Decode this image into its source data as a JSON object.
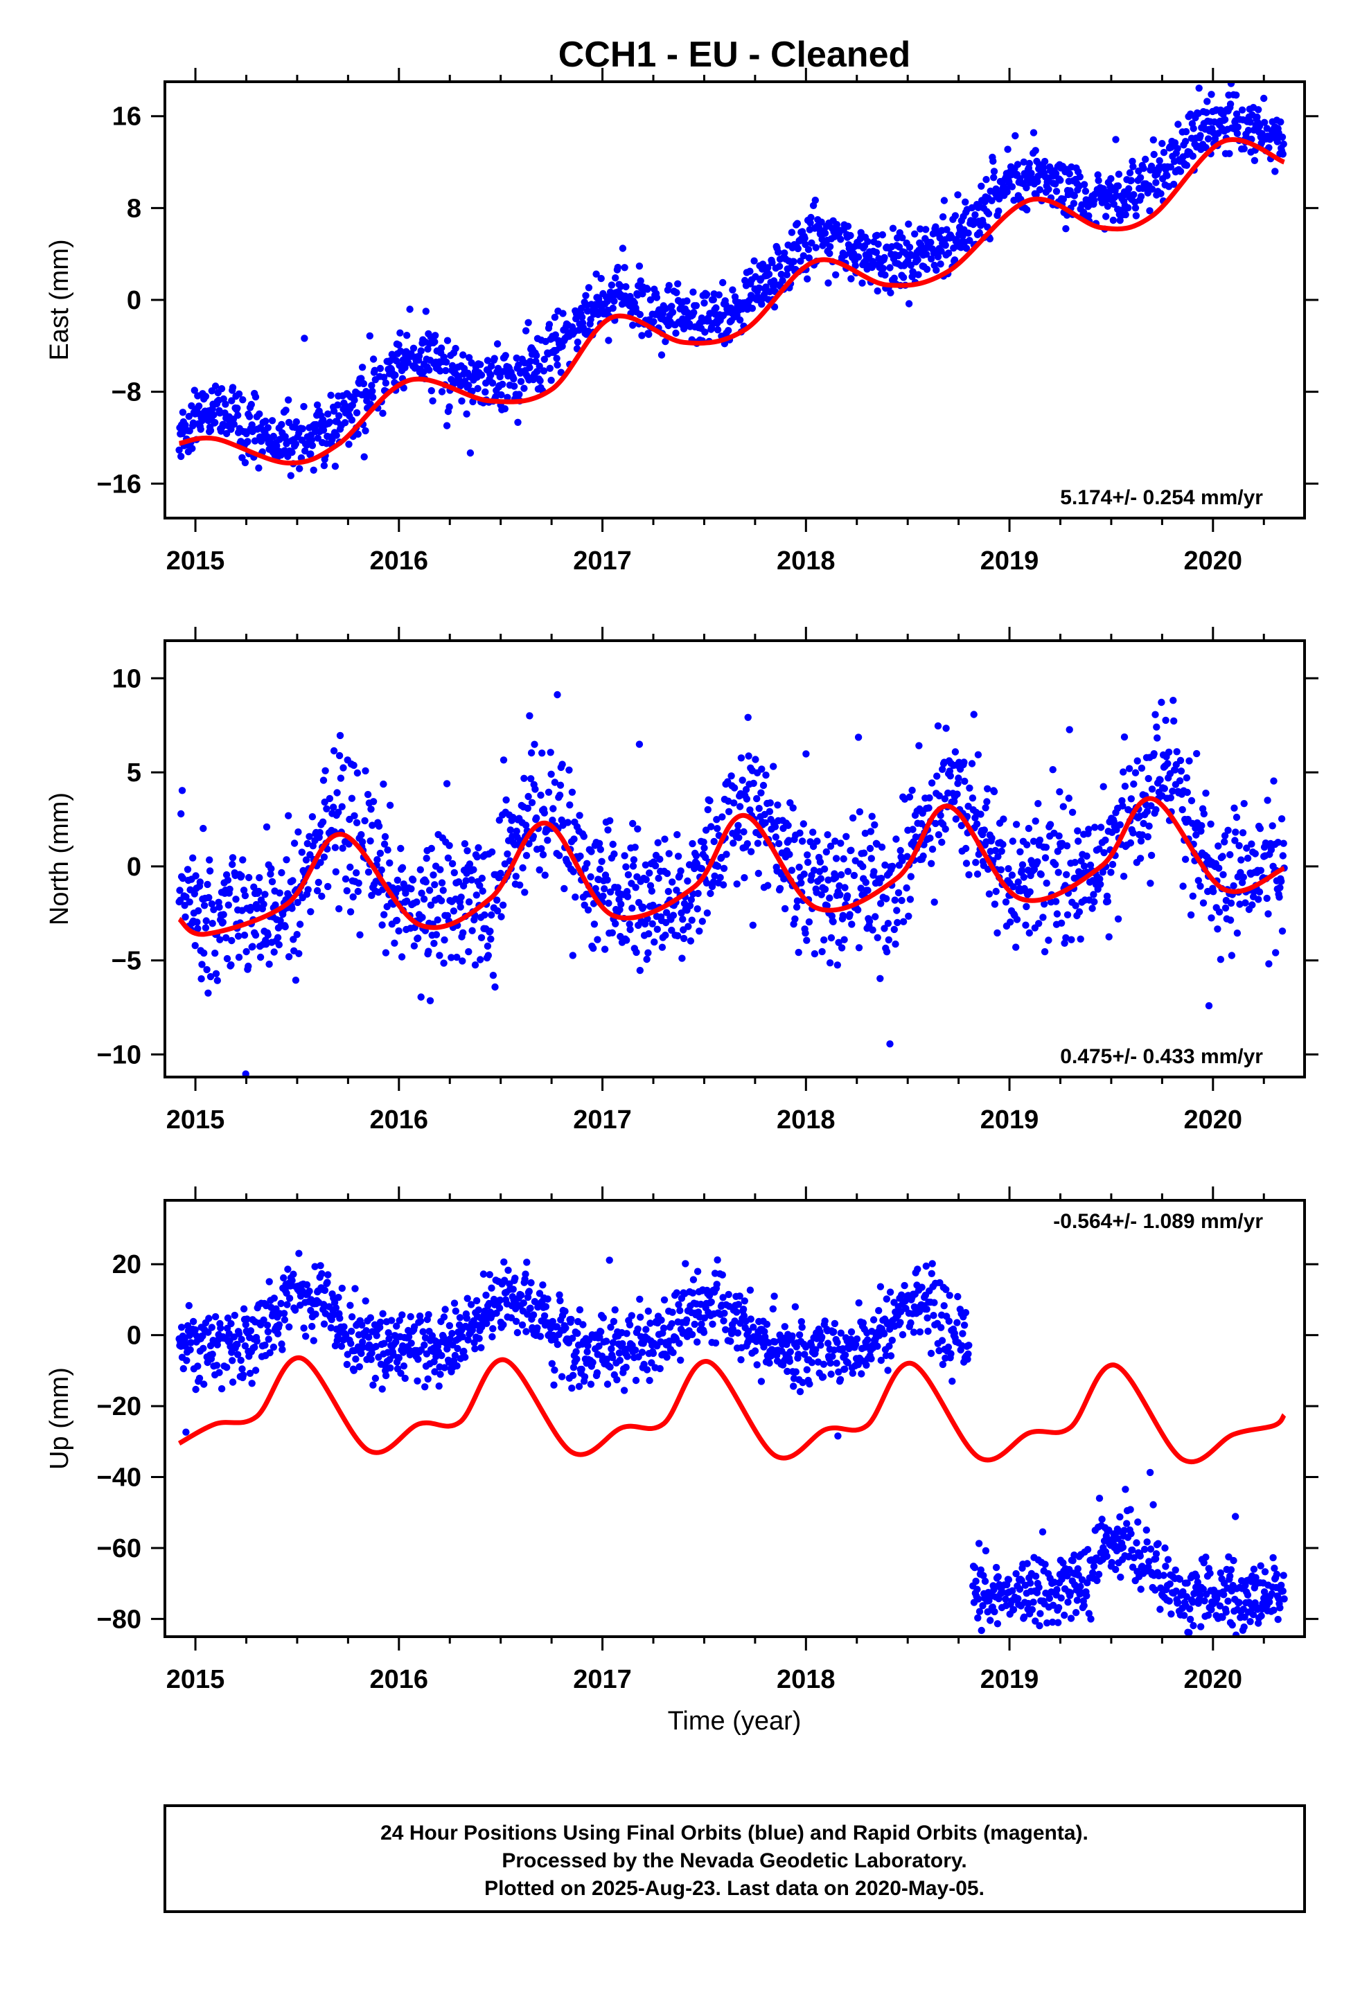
{
  "title": "CCH1  - EU - Cleaned",
  "xlabel": "Time (year)",
  "colors": {
    "final_orbits": "#0000ff",
    "model": "#ff0000",
    "frame": "#000000"
  },
  "footer": {
    "lines": [
      "24 Hour Positions Using Final Orbits (blue) and Rapid Orbits (magenta).",
      "Processed by the Nevada Geodetic Laboratory.",
      "Plotted on 2025-Aug-23. Last data on 2020-May-05."
    ]
  },
  "chart_data": [
    {
      "type": "scatter",
      "ylabel": "East (mm)",
      "rate_label": "5.174+/- 0.254 mm/yr",
      "rate_position": "bottom-right",
      "xlim": [
        2014.85,
        2020.45
      ],
      "ylim": [
        -19,
        19
      ],
      "xticks": [
        2015,
        2016,
        2017,
        2018,
        2019,
        2020
      ],
      "yticks": [
        -16,
        -8,
        0,
        8,
        16
      ],
      "data_start": 2014.92,
      "data_end": 2020.35,
      "trend": {
        "slope_mm_per_yr": 5.174,
        "value_at_2015": -12.8
      },
      "seasonal": {
        "annual_amplitude": 2.2,
        "annual_phase_year": 0.05,
        "semiannual_amplitude": 0.3
      },
      "scatter_sd": 1.3,
      "model_series": [
        [
          2014.92,
          -12.5
        ],
        [
          2015.1,
          -12.1
        ],
        [
          2015.45,
          -14.2
        ],
        [
          2015.7,
          -12.6
        ],
        [
          2016.05,
          -7.0
        ],
        [
          2016.45,
          -8.8
        ],
        [
          2016.75,
          -7.8
        ],
        [
          2017.05,
          -1.5
        ],
        [
          2017.4,
          -3.7
        ],
        [
          2017.7,
          -2.6
        ],
        [
          2018.05,
          3.4
        ],
        [
          2018.4,
          1.3
        ],
        [
          2018.7,
          2.5
        ],
        [
          2019.1,
          8.7
        ],
        [
          2019.45,
          6.3
        ],
        [
          2019.7,
          7.3
        ],
        [
          2020.05,
          13.8
        ],
        [
          2020.35,
          12.0
        ]
      ]
    },
    {
      "type": "scatter",
      "ylabel": "North (mm)",
      "rate_label": "0.475+/- 0.433 mm/yr",
      "rate_position": "bottom-right",
      "xlim": [
        2014.85,
        2020.45
      ],
      "ylim": [
        -11.2,
        12.0
      ],
      "xticks": [
        2015,
        2016,
        2017,
        2018,
        2019,
        2020
      ],
      "yticks": [
        -10,
        -5,
        0,
        5,
        10
      ],
      "data_start": 2014.92,
      "data_end": 2020.35,
      "trend": {
        "slope_mm_per_yr": 0.475,
        "value_at_2015": -1.0
      },
      "seasonal": {
        "annual_amplitude": 2.4,
        "annual_phase_year": 0.72,
        "semiannual_amplitude": 0.8
      },
      "scatter_sd": 1.8,
      "model_series": [
        [
          2014.92,
          -2.8
        ],
        [
          2015.05,
          -3.6
        ],
        [
          2015.45,
          -2.0
        ],
        [
          2015.72,
          1.7
        ],
        [
          2016.1,
          -3.1
        ],
        [
          2016.45,
          -1.7
        ],
        [
          2016.72,
          2.3
        ],
        [
          2017.05,
          -2.6
        ],
        [
          2017.45,
          -1.1
        ],
        [
          2017.7,
          2.7
        ],
        [
          2018.05,
          -2.2
        ],
        [
          2018.45,
          -0.6
        ],
        [
          2018.7,
          3.2
        ],
        [
          2019.05,
          -1.7
        ],
        [
          2019.45,
          0.0
        ],
        [
          2019.7,
          3.6
        ],
        [
          2020.05,
          -1.2
        ],
        [
          2020.35,
          -0.1
        ]
      ]
    },
    {
      "type": "scatter",
      "ylabel": "Up (mm)",
      "rate_label": "-0.564+/- 1.089 mm/yr",
      "rate_position": "top-right",
      "xlim": [
        2014.85,
        2020.45
      ],
      "ylim": [
        -85,
        38
      ],
      "xticks": [
        2015,
        2016,
        2017,
        2018,
        2019,
        2020
      ],
      "yticks": [
        -80,
        -60,
        -40,
        -20,
        0,
        20
      ],
      "segments": [
        {
          "start": 2014.92,
          "end": 2018.8,
          "offset_at_2015": 2.0
        },
        {
          "start": 2018.82,
          "end": 2020.35,
          "offset_at_2015": -66.0
        }
      ],
      "trend": {
        "slope_mm_per_yr": -0.564
      },
      "seasonal": {
        "annual_amplitude": 7.0,
        "annual_phase_year": 0.55,
        "semiannual_amplitude": 2.5
      },
      "scatter_sd": 5.0,
      "model_series": [
        [
          2014.92,
          -30.5
        ],
        [
          2015.1,
          -25.0
        ],
        [
          2015.3,
          -23.0
        ],
        [
          2015.52,
          -6.5
        ],
        [
          2015.85,
          -32.5
        ],
        [
          2016.1,
          -25.0
        ],
        [
          2016.3,
          -24.5
        ],
        [
          2016.52,
          -7.0
        ],
        [
          2016.85,
          -33.0
        ],
        [
          2017.1,
          -26.0
        ],
        [
          2017.3,
          -25.0
        ],
        [
          2017.52,
          -7.5
        ],
        [
          2017.85,
          -34.0
        ],
        [
          2018.1,
          -26.5
        ],
        [
          2018.3,
          -25.5
        ],
        [
          2018.52,
          -8.0
        ],
        [
          2018.85,
          -34.5
        ],
        [
          2019.1,
          -27.5
        ],
        [
          2019.3,
          -26.0
        ],
        [
          2019.52,
          -8.5
        ],
        [
          2019.85,
          -35.0
        ],
        [
          2020.1,
          -28.0
        ],
        [
          2020.3,
          -25.5
        ],
        [
          2020.35,
          -22.5
        ]
      ]
    }
  ]
}
